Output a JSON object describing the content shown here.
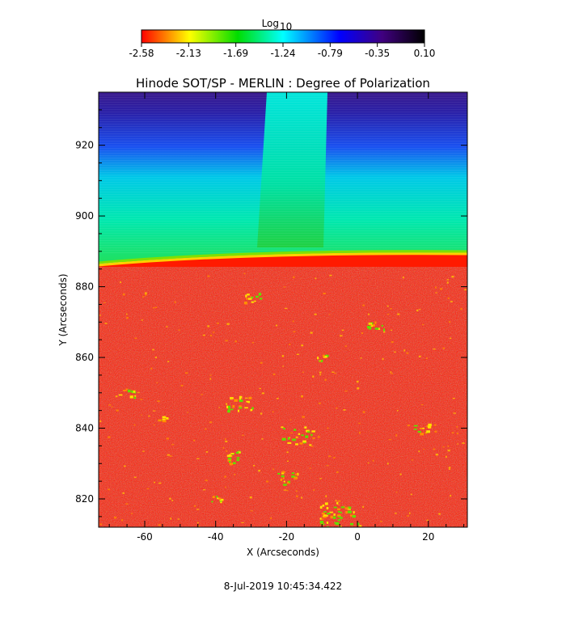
{
  "chart_data": {
    "type": "heatmap",
    "title": "Hinode SOT/SP - MERLIN : Degree of Polarization",
    "xlabel": "X (Arcseconds)",
    "ylabel": "Y (Arcseconds)",
    "xlim": [
      -73,
      31
    ],
    "ylim": [
      812,
      935
    ],
    "x_ticks": [
      -60,
      -40,
      -20,
      0,
      20
    ],
    "y_ticks": [
      820,
      840,
      860,
      880,
      900,
      920
    ],
    "colorbar": {
      "label": "Log",
      "label_subscript": "10",
      "ticks": [
        "-2.58",
        "-2.13",
        "-1.69",
        "-1.24",
        "-0.79",
        "-0.35",
        "0.10"
      ],
      "range": [
        -2.58,
        0.1
      ],
      "colormap_stops": [
        "#ff0000",
        "#ffff00",
        "#00dd00",
        "#00ffff",
        "#0000ff",
        "#400080",
        "#000000"
      ]
    },
    "limb_y_left": 886,
    "limb_y_right": 889,
    "bright_column_x_range": [
      -25,
      -8
    ],
    "regions": {
      "disk_log_value": -2.58,
      "near_limb_above_log_value": -1.24,
      "upper_corona_log_value": -0.35
    },
    "timestamp": "8-Jul-2019 10:45:34.422"
  }
}
